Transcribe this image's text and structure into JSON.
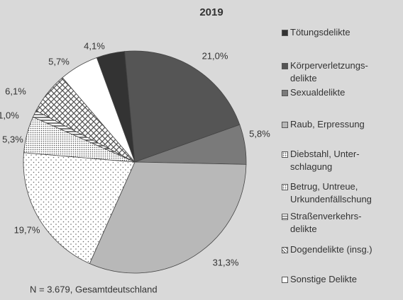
{
  "chart_data": {
    "type": "pie",
    "title": "2019",
    "footnote": "N = 3.679, Gesamtdeutschland",
    "categories": [
      "Tötungsdelikte",
      "Körperverletzungs-\ndelikte",
      "Sexualdelikte",
      "Raub, Erpressung",
      "Diebstahl, Unter-\nschlagung",
      "Betrug, Untreue,\nUrkundenfällschung",
      "Straßenverkehrs-\ndelikte",
      "Dogendelikte (insg.)",
      "Sonstige Delikte"
    ],
    "values": [
      4.1,
      21.0,
      5.8,
      31.3,
      19.7,
      5.3,
      1.0,
      6.1,
      5.7
    ],
    "value_labels": [
      "4,1%",
      "21,0%",
      "5,8%",
      "31,3%",
      "19,7%",
      "5,3%",
      "1,0%",
      "6,1%",
      "5,7%"
    ],
    "colors": [
      "#333333",
      "#555555",
      "#7a7a7a",
      "#b8b8b8",
      "#ffffff",
      "#ffffff",
      "#ffffff",
      "#ffffff",
      "#ffffff"
    ],
    "patterns": [
      null,
      null,
      null,
      null,
      "dots",
      "dense-dots",
      "lines",
      "hatch",
      null
    ]
  }
}
